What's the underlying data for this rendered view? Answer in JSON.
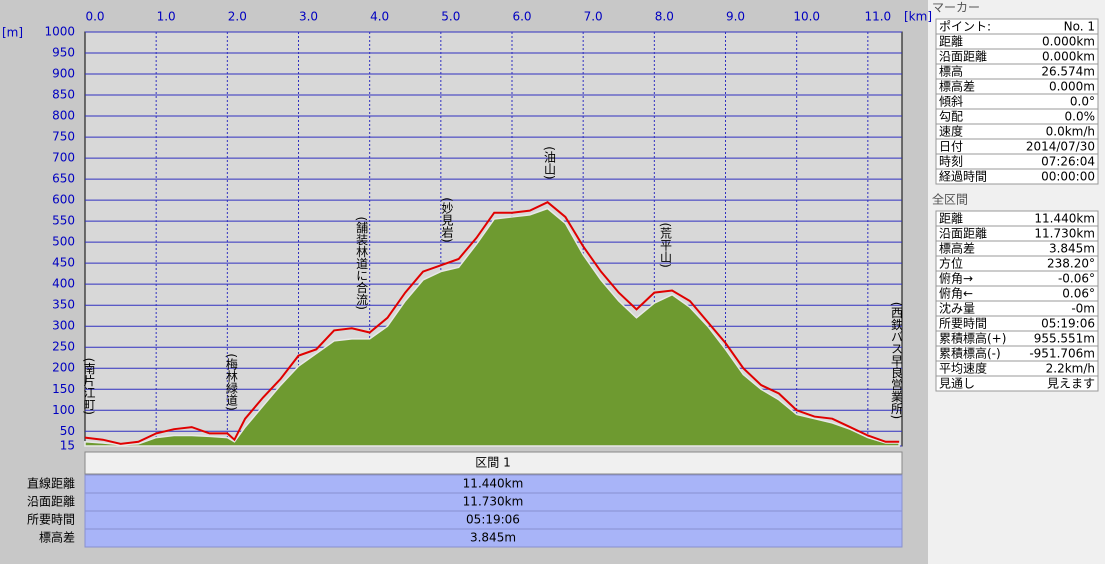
{
  "chart_data": {
    "type": "area-line",
    "x_unit": "[km]",
    "y_unit": "[m]",
    "x": [
      0,
      0.25,
      0.5,
      0.75,
      1,
      1.25,
      1.5,
      1.75,
      2,
      2.1,
      2.25,
      2.5,
      2.75,
      3,
      3.25,
      3.5,
      3.75,
      4,
      4.25,
      4.5,
      4.75,
      5,
      5.25,
      5.5,
      5.75,
      6,
      6.25,
      6.5,
      6.75,
      7,
      7.25,
      7.5,
      7.75,
      8,
      8.25,
      8.5,
      8.75,
      9,
      9.25,
      9.5,
      9.75,
      10,
      10.25,
      10.5,
      10.75,
      11,
      11.25,
      11.44
    ],
    "series": [
      {
        "name": "track",
        "color": "#e00000",
        "values": [
          35,
          30,
          20,
          25,
          45,
          55,
          60,
          45,
          45,
          30,
          80,
          130,
          175,
          230,
          245,
          290,
          295,
          285,
          320,
          380,
          430,
          445,
          460,
          510,
          570,
          570,
          575,
          595,
          560,
          490,
          430,
          380,
          340,
          380,
          385,
          360,
          310,
          260,
          200,
          160,
          140,
          100,
          85,
          80,
          60,
          40,
          25,
          25
        ]
      },
      {
        "name": "terrain",
        "color": "#6e9a30",
        "values": [
          25,
          22,
          18,
          20,
          35,
          40,
          40,
          38,
          35,
          25,
          60,
          110,
          160,
          205,
          235,
          265,
          270,
          270,
          300,
          360,
          410,
          430,
          440,
          495,
          555,
          560,
          565,
          580,
          545,
          470,
          410,
          360,
          320,
          355,
          375,
          345,
          300,
          245,
          185,
          150,
          125,
          90,
          80,
          70,
          55,
          35,
          22,
          22
        ]
      }
    ],
    "xlim": [
      0,
      11.48
    ],
    "ylim": [
      15,
      1000
    ],
    "xticks": [
      {
        "value": 0,
        "label": "0.0"
      },
      {
        "value": 1,
        "label": "1.0"
      },
      {
        "value": 2,
        "label": "2.0"
      },
      {
        "value": 3,
        "label": "3.0"
      },
      {
        "value": 4,
        "label": "4.0"
      },
      {
        "value": 5,
        "label": "5.0"
      },
      {
        "value": 6,
        "label": "6.0"
      },
      {
        "value": 7,
        "label": "7.0"
      },
      {
        "value": 8,
        "label": "8.0"
      },
      {
        "value": 9,
        "label": "9.0"
      },
      {
        "value": 10,
        "label": "10.0"
      },
      {
        "value": 11,
        "label": "11.0"
      }
    ],
    "yticks": [
      1000,
      950,
      900,
      850,
      800,
      750,
      700,
      650,
      600,
      550,
      500,
      450,
      400,
      350,
      300,
      250,
      200,
      150,
      100,
      50,
      15
    ],
    "grid": true,
    "annotations": [
      {
        "text": "(南片江町)",
        "x": 0.05
      },
      {
        "text": "(梅林緑道)",
        "x": 2.05
      },
      {
        "text": "(舗装林道に合流)",
        "x": 3.88
      },
      {
        "text": "(妙見岩)",
        "x": 5.08
      },
      {
        "text": "(油山)",
        "x": 6.52
      },
      {
        "text": "(荒平山)",
        "x": 8.15
      },
      {
        "text": "(西鉄バス早良営業所)",
        "x": 11.45
      }
    ]
  },
  "section_table": {
    "header": "区間 1",
    "rows": [
      [
        "直線距離",
        "11.440km"
      ],
      [
        "沿面距離",
        "11.730km"
      ],
      [
        "所要時間",
        "05:19:06"
      ],
      [
        "標高差",
        "3.845m"
      ]
    ]
  },
  "marker_panel": {
    "title": "マーカー",
    "rows": [
      [
        "ポイント:",
        "No. 1"
      ],
      [
        "距離",
        "0.000km"
      ],
      [
        "沿面距離",
        "0.000km"
      ],
      [
        "標高",
        "26.574m"
      ],
      [
        "標高差",
        "0.000m"
      ],
      [
        "傾斜",
        "0.0°"
      ],
      [
        "勾配",
        "0.0%"
      ],
      [
        "速度",
        "0.0km/h"
      ],
      [
        "日付",
        "2014/07/30"
      ],
      [
        "時刻",
        "07:26:04"
      ],
      [
        "経過時間",
        "00:00:00"
      ]
    ]
  },
  "total_panel": {
    "title": "全区間",
    "rows": [
      [
        "距離",
        "11.440km"
      ],
      [
        "沿面距離",
        "11.730km"
      ],
      [
        "標高差",
        "3.845m"
      ],
      [
        "方位",
        "238.20°"
      ],
      [
        "俯角→",
        "-0.06°"
      ],
      [
        "俯角←",
        "0.06°"
      ],
      [
        "沈み量",
        "-0m"
      ],
      [
        "所要時間",
        "05:19:06"
      ],
      [
        "累積標高(+)",
        "955.551m"
      ],
      [
        "累積標高(-)",
        "-951.706m"
      ],
      [
        "平均速度",
        "2.2km/h"
      ],
      [
        "見通し",
        "見えます"
      ]
    ]
  }
}
